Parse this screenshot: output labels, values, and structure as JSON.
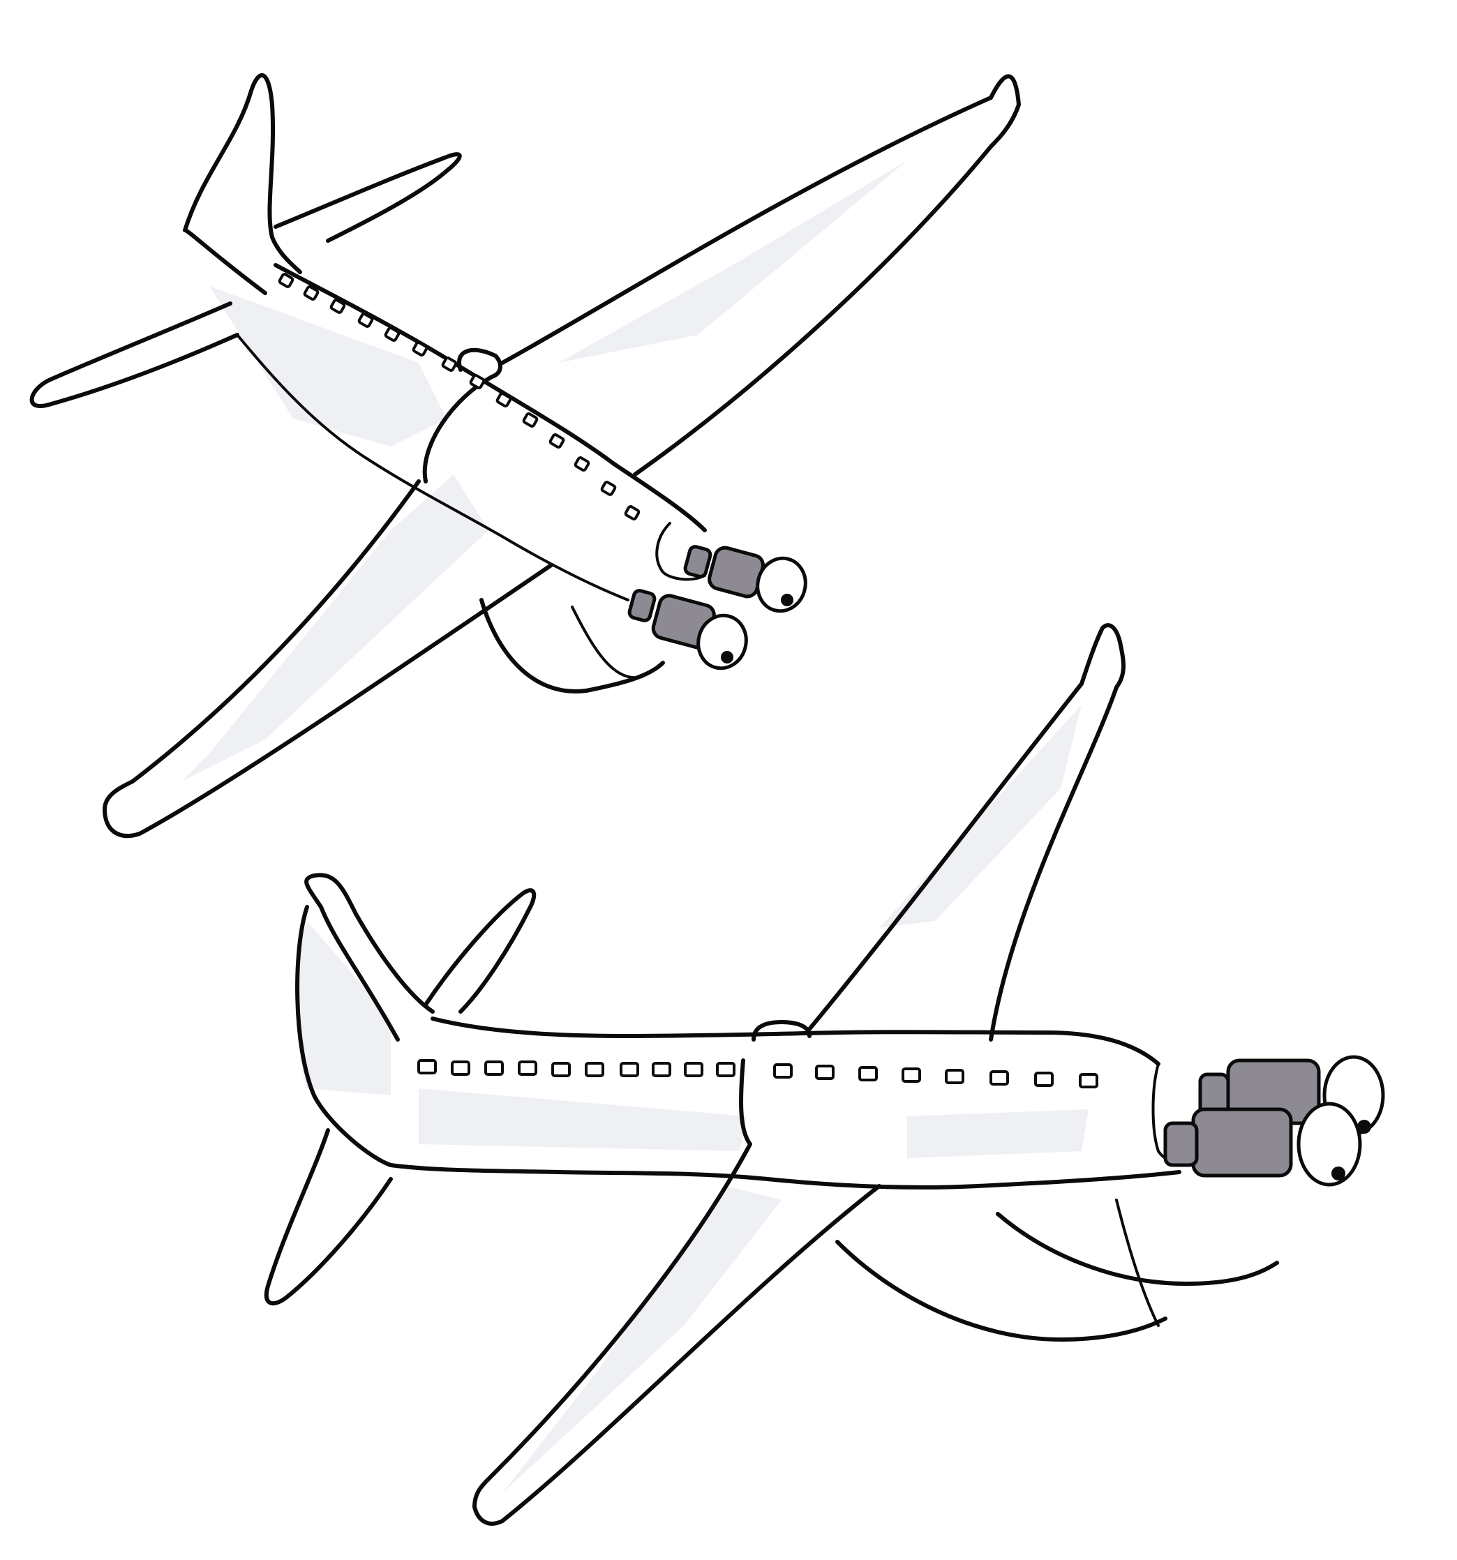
{
  "illustration": {
    "colors": {
      "ink": "#0b0b0b",
      "paper": "#ffffff",
      "wash": "#eef0f4",
      "engine_gray": "#8d8a93"
    },
    "subjects": [
      "airplane-upper",
      "airplane-lower"
    ]
  }
}
